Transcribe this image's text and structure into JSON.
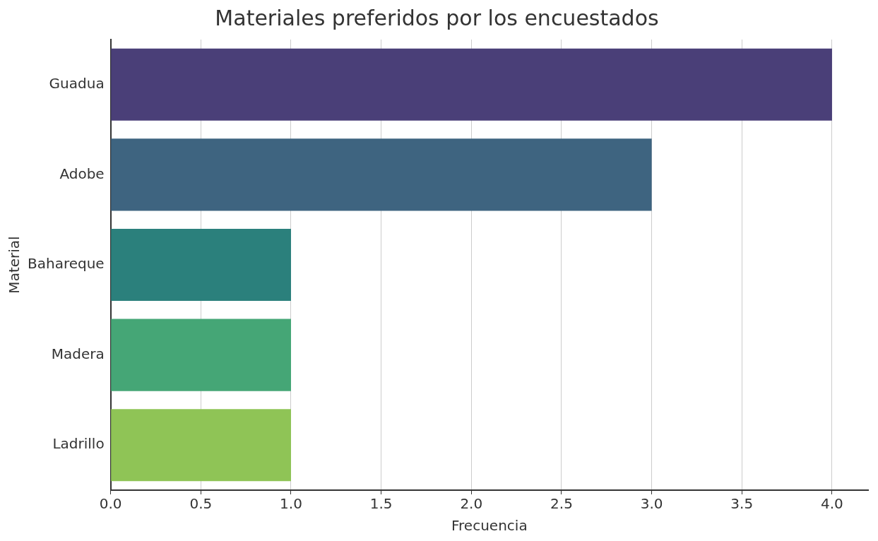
{
  "chart_data": {
    "type": "bar",
    "orientation": "horizontal",
    "title": "Materiales preferidos por los encuestados",
    "xlabel": "Frecuencia",
    "ylabel": "Material",
    "categories": [
      "Guadua",
      "Adobe",
      "Bahareque",
      "Madera",
      "Ladrillo"
    ],
    "values": [
      4,
      3,
      1,
      1,
      1
    ],
    "colors": [
      "#4a3f78",
      "#3e6480",
      "#2b807c",
      "#45a676",
      "#8fc456"
    ],
    "xlim": [
      0,
      4.2
    ],
    "xticks": [
      {
        "value": 0,
        "label": "0.0"
      },
      {
        "value": 0.5,
        "label": "0.5"
      },
      {
        "value": 1,
        "label": "1.0"
      },
      {
        "value": 1.5,
        "label": "1.5"
      },
      {
        "value": 2,
        "label": "2.0"
      },
      {
        "value": 2.5,
        "label": "2.5"
      },
      {
        "value": 3,
        "label": "3.0"
      },
      {
        "value": 3.5,
        "label": "3.5"
      },
      {
        "value": 4,
        "label": "4.0"
      }
    ],
    "grid": "x",
    "legend": false
  }
}
